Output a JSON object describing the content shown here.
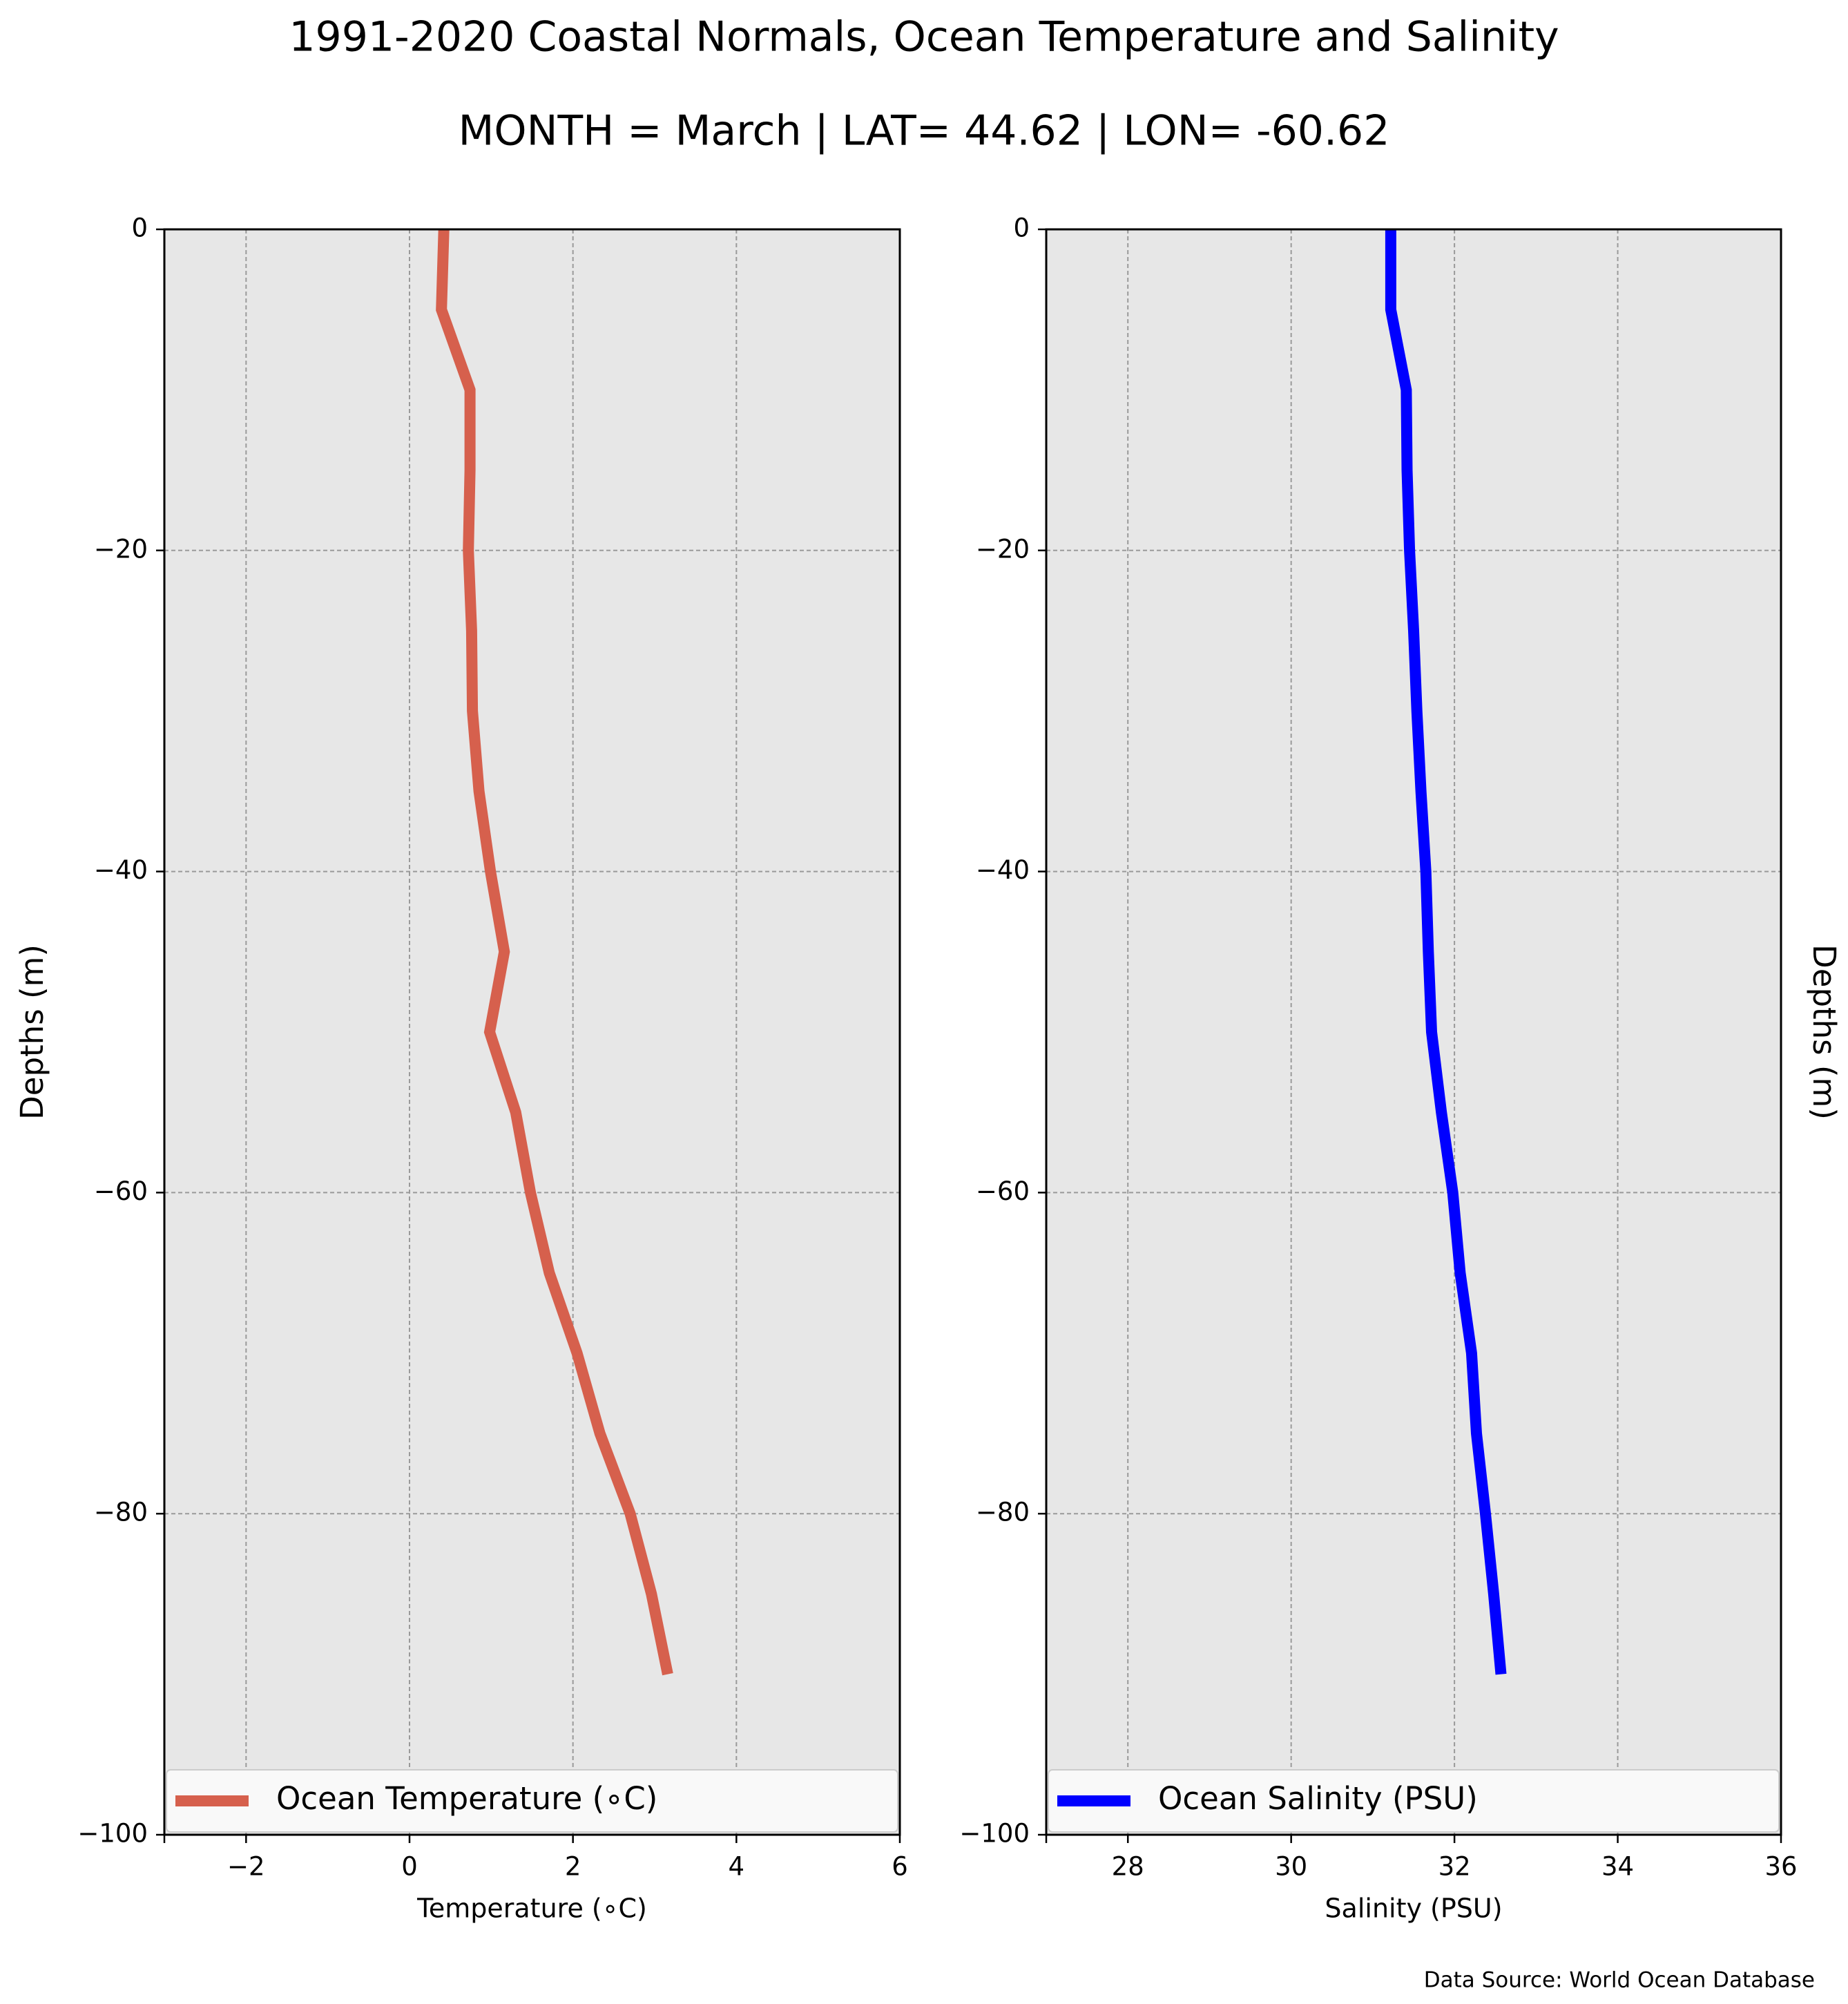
{
  "figure": {
    "title_line1": "1991-2020 Coastal Normals, Ocean Temperature and Salinity",
    "title_line2": "MONTH = March | LAT= 44.62 | LON= -60.62",
    "source_note": "Data Source: World Ocean Database"
  },
  "chart_data": [
    {
      "type": "line",
      "orientation": "vertical-profile",
      "xlabel": "Temperature (∘C)",
      "ylabel": "Depths (m)",
      "xlim": [
        -3,
        6
      ],
      "ylim": [
        -100,
        0
      ],
      "xticks": [
        -2,
        0,
        2,
        4,
        6
      ],
      "xtick_labels": [
        "−2",
        "0",
        "2",
        "4",
        "6"
      ],
      "yticks": [
        0,
        -20,
        -40,
        -60,
        -80,
        -100
      ],
      "ytick_labels": [
        "0",
        "−20",
        "−40",
        "−60",
        "−80",
        "−100"
      ],
      "grid": true,
      "legend_position": "bottom",
      "series": [
        {
          "name": "Ocean Temperature (∘C)",
          "color": "#d6604d",
          "points": [
            {
              "x": 0.42,
              "y": 0
            },
            {
              "x": 0.39,
              "y": -5
            },
            {
              "x": 0.74,
              "y": -10
            },
            {
              "x": 0.74,
              "y": -15
            },
            {
              "x": 0.72,
              "y": -20
            },
            {
              "x": 0.76,
              "y": -25
            },
            {
              "x": 0.77,
              "y": -30
            },
            {
              "x": 0.85,
              "y": -35
            },
            {
              "x": 0.99,
              "y": -40
            },
            {
              "x": 1.16,
              "y": -45
            },
            {
              "x": 0.98,
              "y": -50
            },
            {
              "x": 1.3,
              "y": -55
            },
            {
              "x": 1.48,
              "y": -60
            },
            {
              "x": 1.71,
              "y": -65
            },
            {
              "x": 2.05,
              "y": -70
            },
            {
              "x": 2.33,
              "y": -75
            },
            {
              "x": 2.7,
              "y": -80
            },
            {
              "x": 2.96,
              "y": -85
            },
            {
              "x": 3.16,
              "y": -90
            }
          ]
        }
      ]
    },
    {
      "type": "line",
      "orientation": "vertical-profile",
      "xlabel": "Salinity (PSU)",
      "ylabel": "Depths (m)",
      "xlim": [
        27,
        36
      ],
      "ylim": [
        -100,
        0
      ],
      "xticks": [
        28,
        30,
        32,
        34,
        36
      ],
      "xtick_labels": [
        "28",
        "30",
        "32",
        "34",
        "36"
      ],
      "yticks": [
        0,
        -20,
        -40,
        -60,
        -80,
        -100
      ],
      "ytick_labels": [
        "0",
        "−20",
        "−40",
        "−60",
        "−80",
        "−100"
      ],
      "grid": true,
      "legend_position": "bottom",
      "series": [
        {
          "name": "Ocean Salinity (PSU)",
          "color": "#0000ff",
          "points": [
            {
              "x": 31.22,
              "y": 0
            },
            {
              "x": 31.22,
              "y": -5
            },
            {
              "x": 31.41,
              "y": -10
            },
            {
              "x": 31.42,
              "y": -15
            },
            {
              "x": 31.45,
              "y": -20
            },
            {
              "x": 31.5,
              "y": -25
            },
            {
              "x": 31.54,
              "y": -30
            },
            {
              "x": 31.59,
              "y": -35
            },
            {
              "x": 31.65,
              "y": -40
            },
            {
              "x": 31.68,
              "y": -45
            },
            {
              "x": 31.72,
              "y": -50
            },
            {
              "x": 31.84,
              "y": -55
            },
            {
              "x": 31.98,
              "y": -60
            },
            {
              "x": 32.07,
              "y": -65
            },
            {
              "x": 32.21,
              "y": -70
            },
            {
              "x": 32.27,
              "y": -75
            },
            {
              "x": 32.38,
              "y": -80
            },
            {
              "x": 32.48,
              "y": -85
            },
            {
              "x": 32.57,
              "y": -90
            }
          ]
        }
      ]
    }
  ]
}
